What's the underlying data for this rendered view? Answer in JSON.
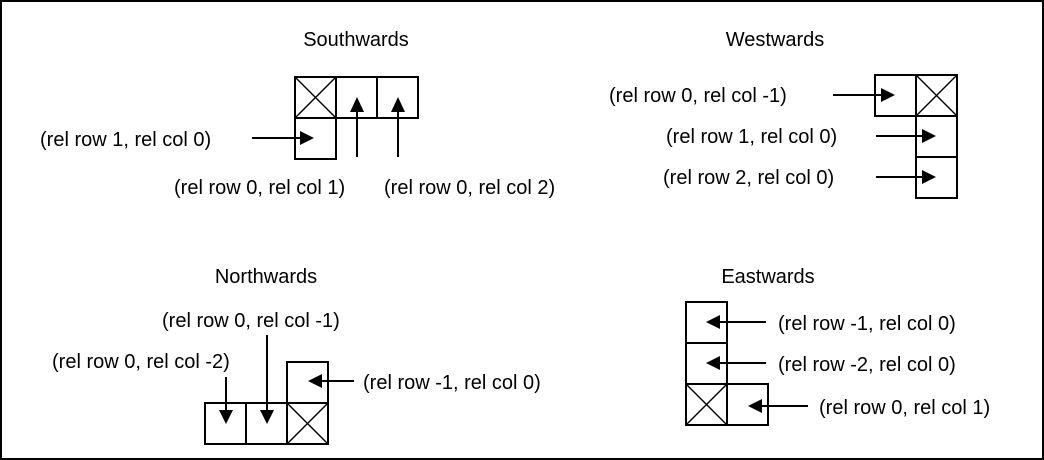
{
  "panels": {
    "south": {
      "title": "Southwards",
      "label_down": "(rel row 1, rel col 0)",
      "label_right1": "(rel row 0, rel col 1)",
      "label_right2": "(rel row 0, rel col 2)"
    },
    "west": {
      "title": "Westwards",
      "label_left": "(rel row 0, rel col -1)",
      "label_down1": "(rel row 1, rel col 0)",
      "label_down2": "(rel row 2, rel col 0)"
    },
    "north": {
      "title": "Northwards",
      "label_left1": "(rel row 0, rel col -1)",
      "label_left2": "(rel row 0, rel col -2)",
      "label_up": "(rel row -1, rel col 0)"
    },
    "east": {
      "title": "Eastwards",
      "label_up1": "(rel row -1, rel col 0)",
      "label_up2": "(rel row -2, rel col 0)",
      "label_right": "(rel row 0, rel col 1)"
    }
  }
}
